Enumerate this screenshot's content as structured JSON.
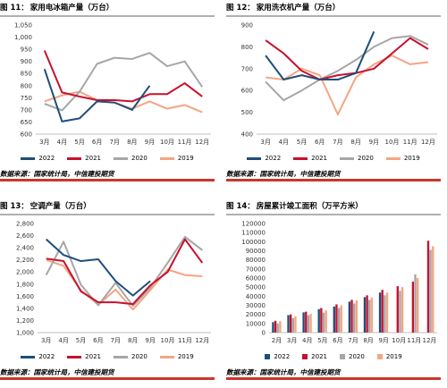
{
  "source": "数据来源：国家统计局，中信建投期货",
  "colors": {
    "2022": "#1f4e79",
    "2021": "#c8102e",
    "2020": "#a6a6a6",
    "2019": "#f4a582"
  },
  "panels": [
    {
      "label": "图 11：",
      "title": "家用电冰箱产量（万台）",
      "chart_data": {
        "type": "line",
        "categories": [
          "3月",
          "4月",
          "5月",
          "6月",
          "7月",
          "8月",
          "9月",
          "10月",
          "11月",
          "12月"
        ],
        "yticks": [
          "600",
          "650",
          "700",
          "750",
          "800",
          "850",
          "900",
          "950",
          "1,000",
          "1,050"
        ],
        "ylim": [
          600,
          1050
        ],
        "series": [
          {
            "name": "2022",
            "values": [
              868,
              652,
              665,
              735,
              730,
              700,
              800,
              null,
              null,
              null
            ]
          },
          {
            "name": "2021",
            "values": [
              945,
              772,
              755,
              740,
              740,
              735,
              765,
              765,
              810,
              755
            ]
          },
          {
            "name": "2020",
            "values": [
              725,
              698,
              775,
              890,
              915,
              910,
              935,
              880,
              900,
              795
            ]
          },
          {
            "name": "2019",
            "values": [
              735,
              760,
              775,
              740,
              730,
              705,
              735,
              705,
              720,
              690
            ]
          }
        ]
      }
    },
    {
      "label": "图 12：",
      "title": "家用洗衣机产量（万台）",
      "chart_data": {
        "type": "line",
        "categories": [
          "3月",
          "4月",
          "5月",
          "6月",
          "7月",
          "8月",
          "9月",
          "10月",
          "11月",
          "12月"
        ],
        "yticks": [
          "400",
          "500",
          "600",
          "700",
          "800",
          "900"
        ],
        "ylim": [
          400,
          900
        ],
        "series": [
          {
            "name": "2022",
            "values": [
              760,
              650,
              670,
              650,
              650,
              680,
              870,
              null,
              null,
              null
            ]
          },
          {
            "name": "2021",
            "values": [
              830,
              770,
              690,
              650,
              670,
              680,
              700,
              770,
              840,
              790
            ]
          },
          {
            "name": "2020",
            "values": [
              640,
              555,
              600,
              650,
              690,
              740,
              800,
              840,
              850,
              810
            ]
          },
          {
            "name": "2019",
            "values": [
              660,
              650,
              700,
              670,
              490,
              660,
              720,
              760,
              720,
              730
            ]
          }
        ]
      }
    },
    {
      "label": "图 13：",
      "title": "空调产量（万台）",
      "chart_data": {
        "type": "line",
        "categories": [
          "3月",
          "4月",
          "5月",
          "6月",
          "7月",
          "8月",
          "9月",
          "10月",
          "11月",
          "12月"
        ],
        "yticks": [
          "1,000",
          "1,200",
          "1,400",
          "1,600",
          "1,800",
          "2,000",
          "2,200",
          "2,400",
          "2,600",
          "2,800"
        ],
        "ylim": [
          1000,
          2800
        ],
        "series": [
          {
            "name": "2022",
            "values": [
              2540,
              2280,
              2180,
              2210,
              1850,
              1610,
              1850,
              null,
              null,
              null
            ]
          },
          {
            "name": "2021",
            "values": [
              2220,
              2180,
              1680,
              1500,
              1500,
              1470,
              1780,
              2000,
              2540,
              2150
            ]
          },
          {
            "name": "2020",
            "values": [
              1950,
              2500,
              1790,
              1450,
              1820,
              1440,
              1740,
              2150,
              2580,
              2360
            ]
          },
          {
            "name": "2019",
            "values": [
              2200,
              2100,
              1700,
              1460,
              1710,
              1380,
              1700,
              2040,
              1950,
              1930
            ]
          }
        ]
      }
    },
    {
      "label": "图 14：",
      "title": "房屋累计竣工面积（万平方米）",
      "chart_data": {
        "type": "bar",
        "categories": [
          "2月",
          "3月",
          "4月",
          "5月",
          "6月",
          "7月",
          "8月",
          "9月",
          "10月",
          "11月",
          "12月"
        ],
        "yticks": [
          "0",
          "10000",
          "20000",
          "30000",
          "40000",
          "50000",
          "60000",
          "70000",
          "80000",
          "90000",
          "100000",
          "110000",
          "120000"
        ],
        "ylim": [
          0,
          120000
        ],
        "series": [
          {
            "name": "2022",
            "values": [
              11500,
              19200,
              22200,
              25800,
              28600,
              34000,
              39000,
              44000,
              null,
              null,
              null
            ]
          },
          {
            "name": "2021",
            "values": [
              13000,
              20000,
              23000,
              27000,
              31000,
              36000,
              41000,
              47000,
              51000,
              56000,
              101000
            ]
          },
          {
            "name": "2020",
            "values": [
              10000,
              16000,
              19000,
              22000,
              27000,
              32000,
              36000,
              41000,
              46000,
              64000,
              91000
            ]
          },
          {
            "name": "2019",
            "values": [
              12500,
              18000,
              20500,
              24500,
              30000,
              35500,
              38500,
              44000,
              50000,
              60000,
              95000
            ]
          }
        ]
      }
    }
  ]
}
